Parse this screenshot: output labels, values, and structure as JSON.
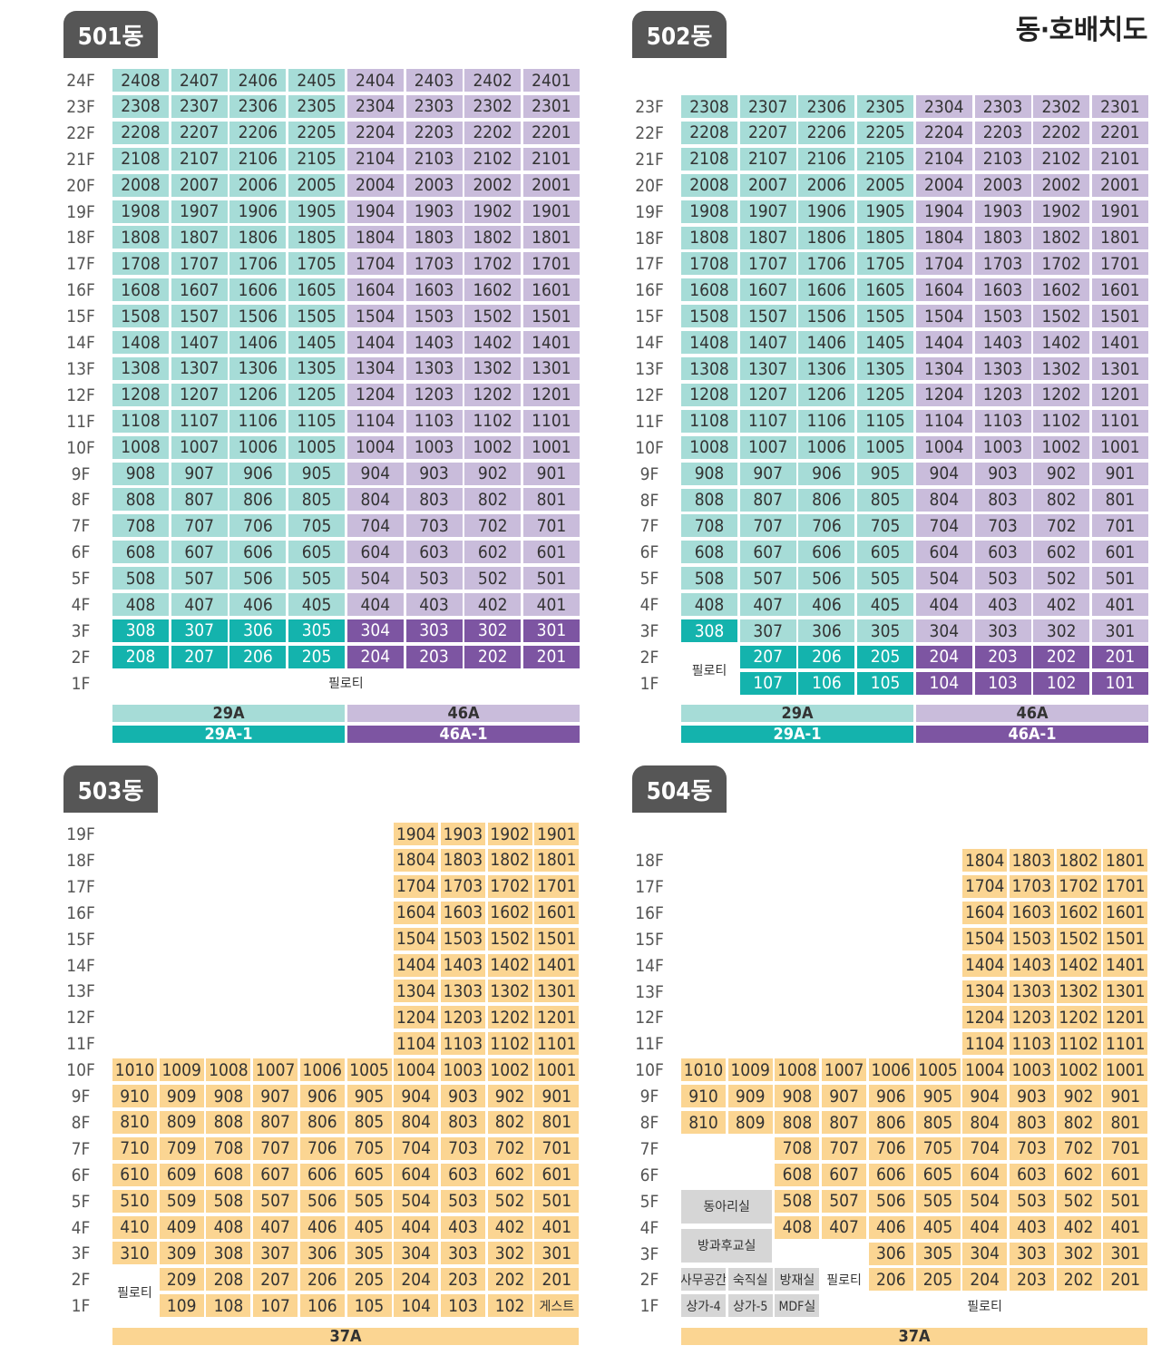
{
  "page_title": "동·호배치도",
  "colors": {
    "teal_light": "#a6dcd7",
    "teal_dark": "#14b3ad",
    "purple_light": "#c9bcdb",
    "purple_dark": "#7d55a2",
    "yellow": "#fbd592",
    "gray": "#d6d6d6",
    "tab": "#565656"
  },
  "buildings": [
    {
      "name": "501동",
      "floors": [
        "24F",
        "23F",
        "22F",
        "21F",
        "20F",
        "19F",
        "18F",
        "17F",
        "16F",
        "15F",
        "14F",
        "13F",
        "12F",
        "11F",
        "10F",
        "9F",
        "8F",
        "7F",
        "6F",
        "5F",
        "4F",
        "3F",
        "2F",
        "1F"
      ],
      "rows": [
        [
          "2408",
          "2407",
          "2406",
          "2405",
          "2404",
          "2403",
          "2402",
          "2401"
        ],
        [
          "2308",
          "2307",
          "2306",
          "2305",
          "2304",
          "2303",
          "2302",
          "2301"
        ],
        [
          "2208",
          "2207",
          "2206",
          "2205",
          "2204",
          "2203",
          "2202",
          "2201"
        ],
        [
          "2108",
          "2107",
          "2106",
          "2105",
          "2104",
          "2103",
          "2102",
          "2101"
        ],
        [
          "2008",
          "2007",
          "2006",
          "2005",
          "2004",
          "2003",
          "2002",
          "2001"
        ],
        [
          "1908",
          "1907",
          "1906",
          "1905",
          "1904",
          "1903",
          "1902",
          "1901"
        ],
        [
          "1808",
          "1807",
          "1806",
          "1805",
          "1804",
          "1803",
          "1802",
          "1801"
        ],
        [
          "1708",
          "1707",
          "1706",
          "1705",
          "1704",
          "1703",
          "1702",
          "1701"
        ],
        [
          "1608",
          "1607",
          "1606",
          "1605",
          "1604",
          "1603",
          "1602",
          "1601"
        ],
        [
          "1508",
          "1507",
          "1506",
          "1505",
          "1504",
          "1503",
          "1502",
          "1501"
        ],
        [
          "1408",
          "1407",
          "1406",
          "1405",
          "1404",
          "1403",
          "1402",
          "1401"
        ],
        [
          "1308",
          "1307",
          "1306",
          "1305",
          "1304",
          "1303",
          "1302",
          "1301"
        ],
        [
          "1208",
          "1207",
          "1206",
          "1205",
          "1204",
          "1203",
          "1202",
          "1201"
        ],
        [
          "1108",
          "1107",
          "1106",
          "1105",
          "1104",
          "1103",
          "1102",
          "1101"
        ],
        [
          "1008",
          "1007",
          "1006",
          "1005",
          "1004",
          "1003",
          "1002",
          "1001"
        ],
        [
          "908",
          "907",
          "906",
          "905",
          "904",
          "903",
          "902",
          "901"
        ],
        [
          "808",
          "807",
          "806",
          "805",
          "804",
          "803",
          "802",
          "801"
        ],
        [
          "708",
          "707",
          "706",
          "705",
          "704",
          "703",
          "702",
          "701"
        ],
        [
          "608",
          "607",
          "606",
          "605",
          "604",
          "603",
          "602",
          "601"
        ],
        [
          "508",
          "507",
          "506",
          "505",
          "504",
          "503",
          "502",
          "501"
        ],
        [
          "408",
          "407",
          "406",
          "405",
          "404",
          "403",
          "402",
          "401"
        ],
        [
          "308",
          "307",
          "306",
          "305",
          "304",
          "303",
          "302",
          "301"
        ],
        [
          "208",
          "207",
          "206",
          "205",
          "204",
          "203",
          "202",
          "201"
        ]
      ],
      "pilotis": "필로티",
      "types": [
        {
          "label": "29A",
          "style": "teal_light"
        },
        {
          "label": "46A",
          "style": "purple_light"
        },
        {
          "label": "29A-1",
          "style": "teal_dark"
        },
        {
          "label": "46A-1",
          "style": "purple_dark"
        }
      ]
    },
    {
      "name": "502동",
      "floors": [
        "23F",
        "22F",
        "21F",
        "20F",
        "19F",
        "18F",
        "17F",
        "16F",
        "15F",
        "14F",
        "13F",
        "12F",
        "11F",
        "10F",
        "9F",
        "8F",
        "7F",
        "6F",
        "5F",
        "4F",
        "3F",
        "2F",
        "1F"
      ],
      "rows": [
        [
          "2308",
          "2307",
          "2306",
          "2305",
          "2304",
          "2303",
          "2302",
          "2301"
        ],
        [
          "2208",
          "2207",
          "2206",
          "2205",
          "2204",
          "2203",
          "2202",
          "2201"
        ],
        [
          "2108",
          "2107",
          "2106",
          "2105",
          "2104",
          "2103",
          "2102",
          "2101"
        ],
        [
          "2008",
          "2007",
          "2006",
          "2005",
          "2004",
          "2003",
          "2002",
          "2001"
        ],
        [
          "1908",
          "1907",
          "1906",
          "1905",
          "1904",
          "1903",
          "1902",
          "1901"
        ],
        [
          "1808",
          "1807",
          "1806",
          "1805",
          "1804",
          "1803",
          "1802",
          "1801"
        ],
        [
          "1708",
          "1707",
          "1706",
          "1705",
          "1704",
          "1703",
          "1702",
          "1701"
        ],
        [
          "1608",
          "1607",
          "1606",
          "1605",
          "1604",
          "1603",
          "1602",
          "1601"
        ],
        [
          "1508",
          "1507",
          "1506",
          "1505",
          "1504",
          "1503",
          "1502",
          "1501"
        ],
        [
          "1408",
          "1407",
          "1406",
          "1405",
          "1404",
          "1403",
          "1402",
          "1401"
        ],
        [
          "1308",
          "1307",
          "1306",
          "1305",
          "1304",
          "1303",
          "1302",
          "1301"
        ],
        [
          "1208",
          "1207",
          "1206",
          "1205",
          "1204",
          "1203",
          "1202",
          "1201"
        ],
        [
          "1108",
          "1107",
          "1106",
          "1105",
          "1104",
          "1103",
          "1102",
          "1101"
        ],
        [
          "1008",
          "1007",
          "1006",
          "1005",
          "1004",
          "1003",
          "1002",
          "1001"
        ],
        [
          "908",
          "907",
          "906",
          "905",
          "904",
          "903",
          "902",
          "901"
        ],
        [
          "808",
          "807",
          "806",
          "805",
          "804",
          "803",
          "802",
          "801"
        ],
        [
          "708",
          "707",
          "706",
          "705",
          "704",
          "703",
          "702",
          "701"
        ],
        [
          "608",
          "607",
          "606",
          "605",
          "604",
          "603",
          "602",
          "601"
        ],
        [
          "508",
          "507",
          "506",
          "505",
          "504",
          "503",
          "502",
          "501"
        ],
        [
          "408",
          "407",
          "406",
          "405",
          "404",
          "403",
          "402",
          "401"
        ],
        [
          "308",
          "307",
          "306",
          "305",
          "304",
          "303",
          "302",
          "301"
        ],
        [
          "207",
          "206",
          "205",
          "204",
          "203",
          "202",
          "201"
        ],
        [
          "107",
          "106",
          "105",
          "104",
          "103",
          "102",
          "101"
        ]
      ],
      "pilotis": "필로티",
      "types": [
        {
          "label": "29A",
          "style": "teal_light"
        },
        {
          "label": "46A",
          "style": "purple_light"
        },
        {
          "label": "29A-1",
          "style": "teal_dark"
        },
        {
          "label": "46A-1",
          "style": "purple_dark"
        }
      ]
    },
    {
      "name": "503동",
      "floors": [
        "19F",
        "18F",
        "17F",
        "16F",
        "15F",
        "14F",
        "13F",
        "12F",
        "11F",
        "10F",
        "9F",
        "8F",
        "7F",
        "6F",
        "5F",
        "4F",
        "3F",
        "2F",
        "1F"
      ],
      "rows": [
        [
          "1904",
          "1903",
          "1902",
          "1901"
        ],
        [
          "1804",
          "1803",
          "1802",
          "1801"
        ],
        [
          "1704",
          "1703",
          "1702",
          "1701"
        ],
        [
          "1604",
          "1603",
          "1602",
          "1601"
        ],
        [
          "1504",
          "1503",
          "1502",
          "1501"
        ],
        [
          "1404",
          "1403",
          "1402",
          "1401"
        ],
        [
          "1304",
          "1303",
          "1302",
          "1301"
        ],
        [
          "1204",
          "1203",
          "1202",
          "1201"
        ],
        [
          "1104",
          "1103",
          "1102",
          "1101"
        ],
        [
          "1010",
          "1009",
          "1008",
          "1007",
          "1006",
          "1005",
          "1004",
          "1003",
          "1002",
          "1001"
        ],
        [
          "910",
          "909",
          "908",
          "907",
          "906",
          "905",
          "904",
          "903",
          "902",
          "901"
        ],
        [
          "810",
          "809",
          "808",
          "807",
          "806",
          "805",
          "804",
          "803",
          "802",
          "801"
        ],
        [
          "710",
          "709",
          "708",
          "707",
          "706",
          "705",
          "704",
          "703",
          "702",
          "701"
        ],
        [
          "610",
          "609",
          "608",
          "607",
          "606",
          "605",
          "604",
          "603",
          "602",
          "601"
        ],
        [
          "510",
          "509",
          "508",
          "507",
          "506",
          "505",
          "504",
          "503",
          "502",
          "501"
        ],
        [
          "410",
          "409",
          "408",
          "407",
          "406",
          "405",
          "404",
          "403",
          "402",
          "401"
        ],
        [
          "310",
          "309",
          "308",
          "307",
          "306",
          "305",
          "304",
          "303",
          "302",
          "301"
        ],
        [
          "209",
          "208",
          "207",
          "206",
          "205",
          "204",
          "203",
          "202",
          "201"
        ],
        [
          "109",
          "108",
          "107",
          "106",
          "105",
          "104",
          "103",
          "102"
        ]
      ],
      "pilotis": "필로티",
      "guest": "게스트",
      "types": [
        {
          "label": "37A",
          "style": "yellow"
        }
      ]
    },
    {
      "name": "504동",
      "floors": [
        "18F",
        "17F",
        "16F",
        "15F",
        "14F",
        "13F",
        "12F",
        "11F",
        "10F",
        "9F",
        "8F",
        "7F",
        "6F",
        "5F",
        "4F",
        "3F",
        "2F",
        "1F"
      ],
      "rows": [
        [
          "1804",
          "1803",
          "1802",
          "1801"
        ],
        [
          "1704",
          "1703",
          "1702",
          "1701"
        ],
        [
          "1604",
          "1603",
          "1602",
          "1601"
        ],
        [
          "1504",
          "1503",
          "1502",
          "1501"
        ],
        [
          "1404",
          "1403",
          "1402",
          "1401"
        ],
        [
          "1304",
          "1303",
          "1302",
          "1301"
        ],
        [
          "1204",
          "1203",
          "1202",
          "1201"
        ],
        [
          "1104",
          "1103",
          "1102",
          "1101"
        ],
        [
          "1010",
          "1009",
          "1008",
          "1007",
          "1006",
          "1005",
          "1004",
          "1003",
          "1002",
          "1001"
        ],
        [
          "910",
          "909",
          "908",
          "907",
          "906",
          "905",
          "904",
          "903",
          "902",
          "901"
        ],
        [
          "810",
          "809",
          "808",
          "807",
          "806",
          "805",
          "804",
          "803",
          "802",
          "801"
        ],
        [
          "708",
          "707",
          "706",
          "705",
          "704",
          "703",
          "702",
          "701"
        ],
        [
          "608",
          "607",
          "606",
          "605",
          "604",
          "603",
          "602",
          "601"
        ],
        [
          "508",
          "507",
          "506",
          "505",
          "504",
          "503",
          "502",
          "501"
        ],
        [
          "408",
          "407",
          "406",
          "405",
          "404",
          "403",
          "402",
          "401"
        ],
        [
          "306",
          "305",
          "304",
          "303",
          "302",
          "301"
        ],
        [
          "206",
          "205",
          "204",
          "203",
          "202",
          "201"
        ],
        []
      ],
      "facilities": {
        "club": "동아리실",
        "afterschool": "방과후교실",
        "office": "사무공간",
        "lodging": "숙직실",
        "disaster": "방재실",
        "pilotis": "필로티",
        "shop4": "상가-4",
        "shop5": "상가-5",
        "mdf": "MDF실"
      },
      "pilotis_1f": "필로티",
      "types": [
        {
          "label": "37A",
          "style": "yellow"
        }
      ]
    }
  ]
}
